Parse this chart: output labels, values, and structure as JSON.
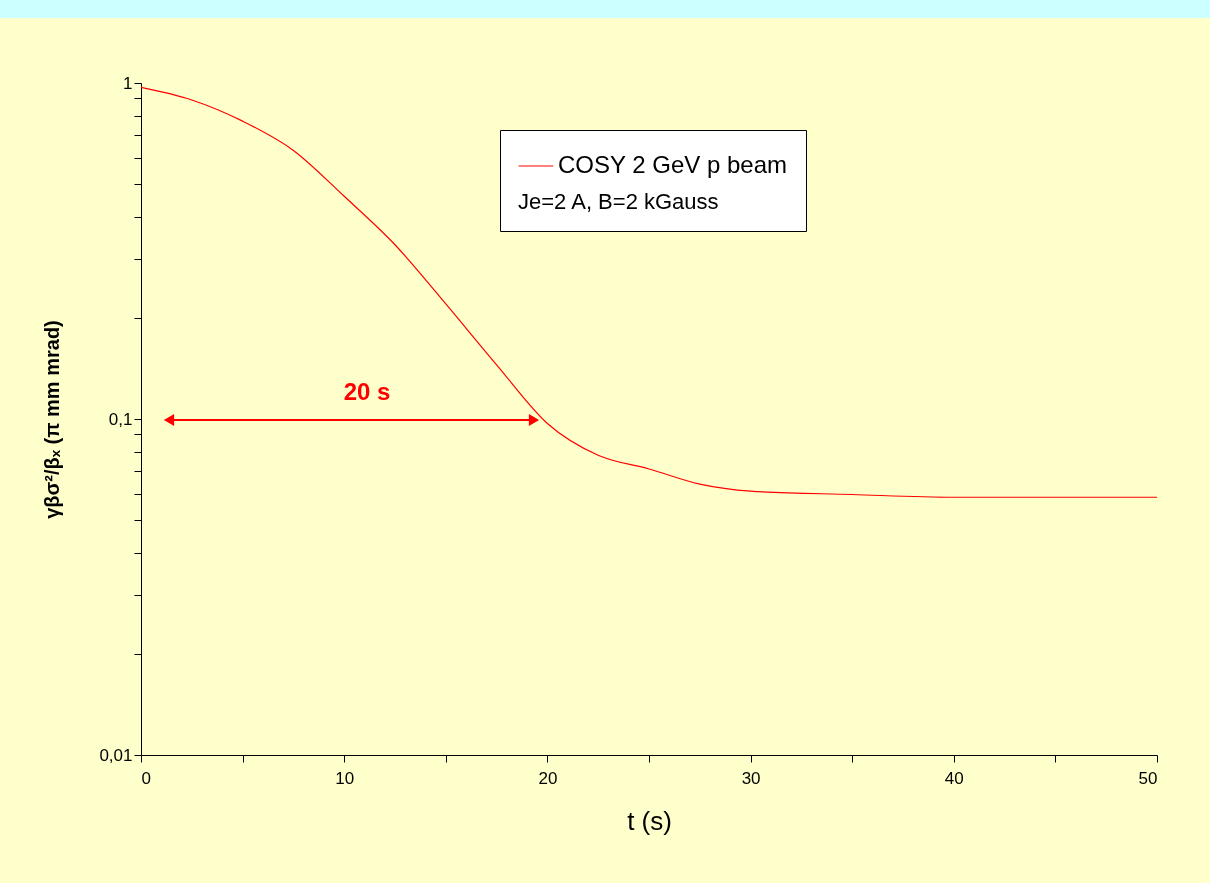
{
  "chart_data": {
    "type": "line",
    "xlabel": "t (s)",
    "ylabel": "γβσ²/βₓ   (π mm mrad)",
    "legend_title": "Je=2 A, B=2 kGauss",
    "legend": "top right",
    "log": true,
    "grid": false,
    "x": [
      0,
      2.5,
      5,
      7.5,
      10,
      12.5,
      15,
      17.5,
      20,
      22.5,
      25,
      27.5,
      30,
      35,
      40,
      45,
      50
    ],
    "series": [
      {
        "name": "COSY 2 GeV p beam",
        "color": "#ff0000",
        "values": [
          0.97,
          0.89,
          0.77,
          0.63,
          0.46,
          0.33,
          0.22,
          0.145,
          0.097,
          0.078,
          0.071,
          0.064,
          0.061,
          0.0596,
          0.0585,
          0.0585,
          0.0585
        ]
      }
    ],
    "xlim": [
      0,
      50
    ],
    "ylim": [
      0.01,
      1
    ],
    "xticks": [
      0,
      {
        "value": 5,
        "label": null
      },
      10,
      {
        "value": 15,
        "label": null
      },
      20,
      {
        "value": 25,
        "label": null
      },
      30,
      {
        "value": 35,
        "label": null
      },
      40,
      {
        "value": 45,
        "label": null
      },
      50
    ],
    "yticks": [
      {
        "value": 0.01,
        "label": "0,01"
      },
      {
        "value": 0.02,
        "label": null
      },
      {
        "value": 0.03,
        "label": null
      },
      {
        "value": 0.04,
        "label": null
      },
      {
        "value": 0.05,
        "label": null
      },
      {
        "value": 0.06,
        "label": null
      },
      {
        "value": 0.07,
        "label": null
      },
      {
        "value": 0.08,
        "label": null
      },
      {
        "value": 0.09,
        "label": null
      },
      {
        "value": 0.1,
        "label": "0,1"
      },
      {
        "value": 0.2,
        "label": null
      },
      {
        "value": 0.3,
        "label": null
      },
      {
        "value": 0.4,
        "label": null
      },
      {
        "value": 0.5,
        "label": null
      },
      {
        "value": 0.6,
        "label": null
      },
      {
        "value": 0.7,
        "label": null
      },
      {
        "value": 0.8,
        "label": null
      },
      {
        "value": 0.9,
        "label": null
      },
      1
    ],
    "annotations": [
      "20 s"
    ]
  }
}
